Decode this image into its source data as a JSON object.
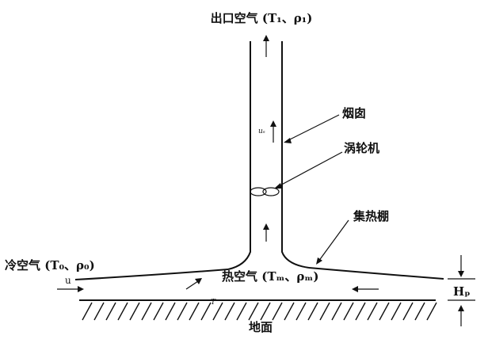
{
  "labels": {
    "outlet_air": "出口空气 (T₁、ρ₁)",
    "chimney": "烟囱",
    "turbine": "涡轮机",
    "collector": "集热棚",
    "cold_air": "冷空气 (T₀、ρ₀)",
    "hot_air": "热空气 (Tₘ、ρₘ)",
    "ground": "地面",
    "height_label": "Hₚ",
    "inlet_velocity": "u",
    "chimney_velocity": "uₛ",
    "ground_temp": "T"
  },
  "colors": {
    "ink": "#111111",
    "background": "#ffffff"
  }
}
